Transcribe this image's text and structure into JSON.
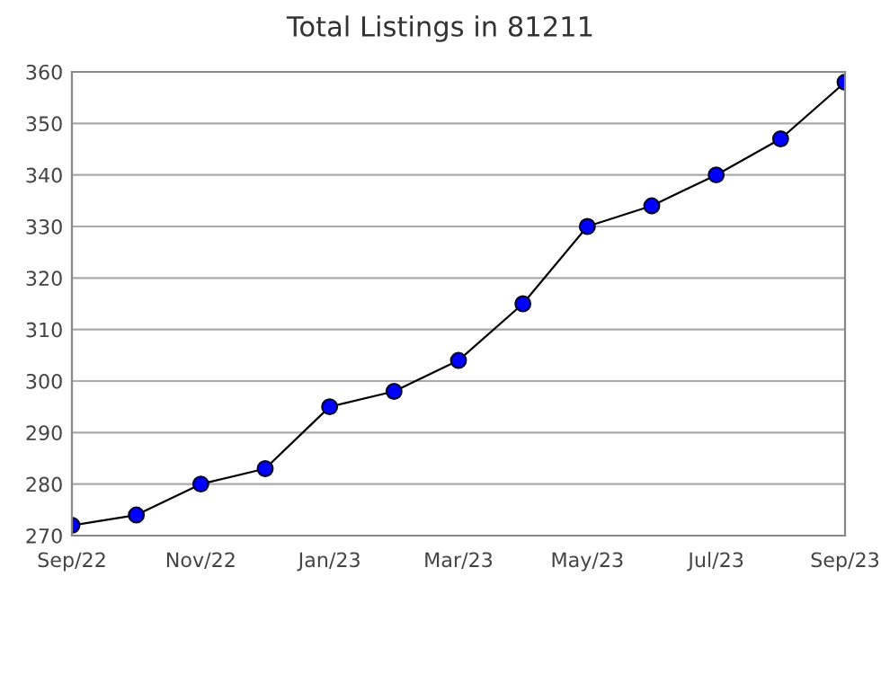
{
  "chart_data": {
    "type": "line",
    "title": "Total Listings in 81211",
    "categories": [
      "Sep/22",
      null,
      "Nov/22",
      null,
      "Jan/23",
      null,
      "Mar/23",
      null,
      "May/23",
      null,
      "Jul/23",
      null,
      "Sep/23"
    ],
    "series": [
      {
        "color": "#0000ff",
        "values": [
          272,
          274,
          280,
          283,
          295,
          298,
          304,
          315,
          330,
          334,
          340,
          347,
          358
        ]
      }
    ],
    "ylim": [
      270,
      360
    ],
    "yticks": [
      270,
      280,
      290,
      300,
      310,
      320,
      330,
      340,
      350,
      360
    ],
    "grid": "y",
    "marker": "circle",
    "line_style": "solid",
    "legend": false
  }
}
